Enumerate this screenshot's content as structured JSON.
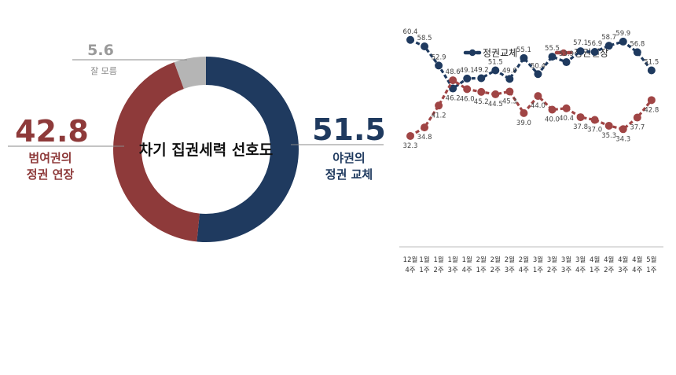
{
  "chart_data": [
    {
      "type": "pie",
      "title": "차기 집권세력 선호도",
      "slices": [
        {
          "key": "opposition",
          "value": 51.5,
          "value_label": "51.5",
          "label_lines": [
            "야권의",
            "정권 교체"
          ],
          "color": "#1f3a5f"
        },
        {
          "key": "ruling",
          "value": 42.8,
          "value_label": "42.8",
          "label_lines": [
            "범여권의",
            "정권 연장"
          ],
          "color": "#8e3a3a"
        },
        {
          "key": "unknown",
          "value": 5.6,
          "value_label": "5.6",
          "label_lines": [
            "잘 모름"
          ],
          "color": "#b5b5b5"
        }
      ]
    },
    {
      "type": "line",
      "categories": [
        [
          "12월",
          "4주"
        ],
        [
          "1월",
          "1주"
        ],
        [
          "1월",
          "2주"
        ],
        [
          "1월",
          "3주"
        ],
        [
          "1월",
          "4주"
        ],
        [
          "2월",
          "1주"
        ],
        [
          "2월",
          "2주"
        ],
        [
          "2월",
          "3주"
        ],
        [
          "2월",
          "4주"
        ],
        [
          "3월",
          "1주"
        ],
        [
          "3월",
          "2주"
        ],
        [
          "3월",
          "3주"
        ],
        [
          "3월",
          "4주"
        ],
        [
          "4월",
          "1주"
        ],
        [
          "4월",
          "2주"
        ],
        [
          "4월",
          "3주"
        ],
        [
          "4월",
          "4주"
        ],
        [
          "5월",
          "1주"
        ]
      ],
      "series": [
        {
          "name": "정권교체",
          "color": "#1f3a5f",
          "values": [
            60.4,
            58.5,
            52.9,
            46.2,
            49.1,
            49.2,
            51.5,
            49.0,
            55.1,
            50.4,
            55.5,
            53.9,
            57.1,
            56.9,
            58.7,
            59.9,
            56.8,
            51.5
          ],
          "labels": [
            "60.4",
            "58.5",
            "52.9",
            "46.2",
            "49.1",
            "49.2",
            "51.5",
            "49.0",
            "55.1",
            "50.4",
            "55.5",
            "53.9",
            "57.1",
            "56.9",
            "58.7",
            "59.9",
            "56.8",
            "51.5"
          ]
        },
        {
          "name": "정권연장",
          "color": "#a04545",
          "values": [
            32.3,
            34.8,
            41.2,
            48.6,
            46.0,
            45.2,
            44.5,
            45.3,
            39.0,
            44.0,
            40.0,
            40.4,
            37.8,
            37.0,
            35.3,
            34.3,
            37.7,
            42.8
          ],
          "labels": [
            "32.3",
            "34.8",
            "41.2",
            "48.6",
            "46.0",
            "45.2",
            "44.5",
            "45.3",
            "39.0",
            "44.0",
            "40.0",
            "40.4",
            "37.8",
            "37.0",
            "35.3",
            "34.3",
            "37.7",
            "42.8"
          ]
        }
      ]
    }
  ]
}
